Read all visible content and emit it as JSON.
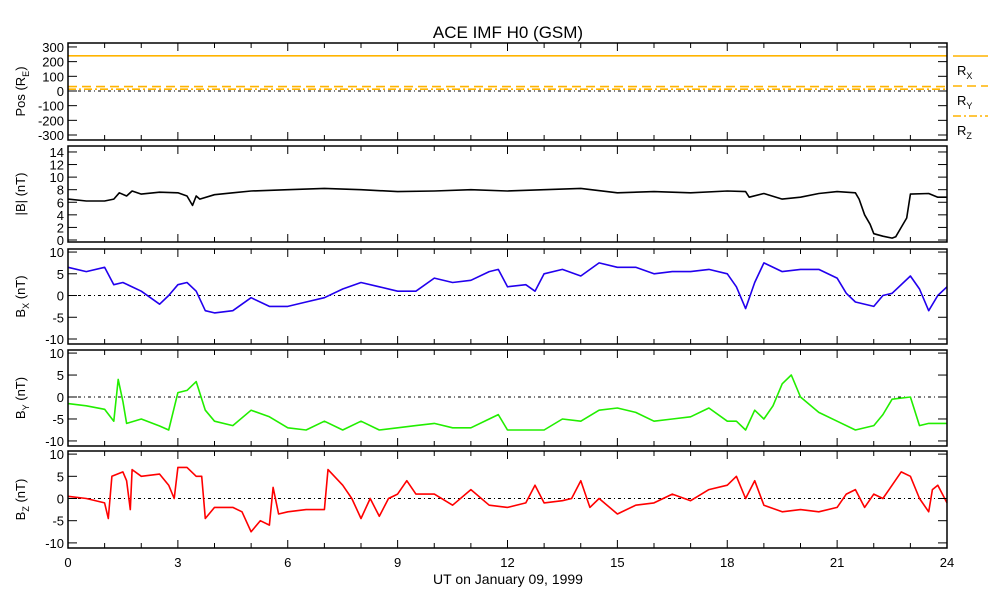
{
  "chart_data": {
    "type": "line",
    "title": "ACE IMF H0 (GSM)",
    "xlabel": "UT on January 09, 1999",
    "xlim": [
      0,
      24
    ],
    "x_tick_labels": [
      "0",
      "3",
      "6",
      "9",
      "12",
      "15",
      "18",
      "21",
      "24"
    ],
    "x_tick_values": [
      0,
      3,
      6,
      9,
      12,
      15,
      18,
      21,
      24
    ],
    "x_minor_step": 1,
    "grid": false,
    "panels": [
      {
        "id": "pos",
        "ylabel": {
          "main": "Pos (R",
          "sub": "E",
          "suffix": ")"
        },
        "ylim": [
          -334,
          327
        ],
        "yticks": [
          -300,
          -200,
          -100,
          0,
          100,
          200,
          300
        ],
        "ytick_labels": [
          "-300",
          "-200",
          "-100",
          "0",
          "100",
          "200",
          "300"
        ],
        "zero_line": true,
        "legend": {
          "placement": "right",
          "entries": [
            {
              "main": "R",
              "sub": "X",
              "style": "solid"
            },
            {
              "main": "R",
              "sub": "Y",
              "style": "dashed"
            },
            {
              "main": "R",
              "sub": "Z",
              "style": "dashdot"
            }
          ]
        },
        "series": [
          {
            "name": "Rx",
            "color": "#ffb400",
            "style": "solid",
            "x": [
              0,
              24
            ],
            "y": [
              240,
              240
            ]
          },
          {
            "name": "Ry",
            "color": "#ffb400",
            "style": "dashed",
            "x": [
              0,
              24
            ],
            "y": [
              30,
              30
            ]
          },
          {
            "name": "Rz",
            "color": "#ffb400",
            "style": "dashdot",
            "x": [
              0,
              24
            ],
            "y": [
              12,
              12
            ]
          }
        ]
      },
      {
        "id": "bmag",
        "ylabel": {
          "main": "|B| (nT)",
          "sub": "",
          "suffix": ""
        },
        "ylim": [
          -0.32,
          14.95
        ],
        "yticks": [
          0,
          2,
          4,
          6,
          8,
          10,
          12,
          14
        ],
        "ytick_labels": [
          "0",
          "2",
          "4",
          "6",
          "8",
          "10",
          "12",
          "14"
        ],
        "zero_line": false,
        "series": [
          {
            "name": "|B|",
            "color": "#000000",
            "style": "solid",
            "x": [
              0,
              0.5,
              1,
              1.25,
              1.4,
              1.6,
              1.75,
              2,
              2.5,
              3,
              3.25,
              3.4,
              3.5,
              3.6,
              4,
              4.5,
              5,
              6,
              7,
              8,
              9,
              10,
              11,
              12,
              13,
              14,
              15,
              16,
              17,
              18,
              18.5,
              18.6,
              19,
              19.5,
              20,
              20.5,
              21,
              21.5,
              21.6,
              21.75,
              21.9,
              22,
              22.25,
              22.5,
              22.6,
              22.75,
              22.9,
              23,
              23.5,
              23.75,
              24
            ],
            "y": [
              6.5,
              6.2,
              6.2,
              6.5,
              7.5,
              7,
              7.8,
              7.3,
              7.6,
              7.5,
              7,
              5.5,
              7,
              6.5,
              7.2,
              7.5,
              7.8,
              8,
              8.2,
              8,
              7.7,
              7.8,
              8,
              7.8,
              8,
              8.2,
              7.5,
              7.7,
              7.5,
              7.8,
              7.7,
              6.8,
              7.4,
              6.5,
              6.8,
              7.4,
              7.7,
              7.5,
              6.5,
              4,
              2.5,
              1,
              0.6,
              0.3,
              0.5,
              2,
              3.5,
              7.3,
              7.4,
              6.8,
              6.8
            ]
          }
        ]
      },
      {
        "id": "bx",
        "ylabel": {
          "main": "B",
          "sub": "X",
          "suffix": " (nT)"
        },
        "ylim": [
          -11.15,
          10.7
        ],
        "yticks": [
          -10,
          -5,
          0,
          5,
          10
        ],
        "ytick_labels": [
          "-10",
          "-5",
          "0",
          "5",
          "10"
        ],
        "zero_line": true,
        "series": [
          {
            "name": "Bx",
            "color": "#2200ee",
            "style": "solid",
            "x": [
              0,
              0.5,
              1,
              1.25,
              1.5,
              2,
              2.5,
              2.75,
              3,
              3.25,
              3.5,
              3.75,
              4,
              4.5,
              5,
              5.5,
              6,
              6.5,
              7,
              7.5,
              8,
              8.5,
              9,
              9.5,
              10,
              10.5,
              11,
              11.5,
              11.75,
              12,
              12.5,
              12.75,
              13,
              13.5,
              14,
              14.5,
              15,
              15.5,
              16,
              16.5,
              17,
              17.5,
              18,
              18.25,
              18.5,
              18.75,
              19,
              19.5,
              20,
              20.5,
              21,
              21.25,
              21.5,
              22,
              22.25,
              22.5,
              23,
              23.25,
              23.5,
              23.75,
              24
            ],
            "y": [
              6.5,
              5.5,
              6.5,
              2.5,
              3,
              1,
              -2,
              0,
              2.5,
              3,
              1,
              -3.5,
              -4,
              -3.5,
              -0.5,
              -2.5,
              -2.5,
              -1.5,
              -0.5,
              1.5,
              3,
              2,
              1,
              1,
              4,
              3,
              3.5,
              5.5,
              6,
              2,
              2.5,
              1,
              5,
              6,
              4.5,
              7.5,
              6.5,
              6.5,
              5,
              5.5,
              5.5,
              6,
              5,
              2,
              -3,
              3,
              7.5,
              5.5,
              6,
              6,
              4,
              0.5,
              -1.5,
              -2.5,
              0,
              0.5,
              4.5,
              1.5,
              -3.5,
              0,
              2
            ]
          }
        ]
      },
      {
        "id": "by",
        "ylabel": {
          "main": "B",
          "sub": "Y",
          "suffix": " (nT)"
        },
        "ylim": [
          -11.15,
          10.7
        ],
        "yticks": [
          -10,
          -5,
          0,
          5,
          10
        ],
        "ytick_labels": [
          "-10",
          "-5",
          "0",
          "5",
          "10"
        ],
        "zero_line": true,
        "series": [
          {
            "name": "By",
            "color": "#22ee00",
            "style": "solid",
            "x": [
              0,
              0.5,
              1,
              1.25,
              1.37,
              1.5,
              1.6,
              2,
              2.5,
              2.75,
              3,
              3.25,
              3.5,
              3.75,
              4,
              4.5,
              5,
              5.5,
              6,
              6.5,
              7,
              7.5,
              8,
              8.5,
              9,
              9.5,
              10,
              10.5,
              11,
              11.5,
              11.75,
              12,
              12.5,
              13,
              13.5,
              14,
              14.5,
              15,
              15.5,
              16,
              16.5,
              17,
              17.5,
              18,
              18.25,
              18.5,
              18.75,
              19,
              19.25,
              19.5,
              19.75,
              20,
              20.5,
              21,
              21.5,
              22,
              22.25,
              22.5,
              23,
              23.25,
              23.5,
              24
            ],
            "y": [
              -1.5,
              -2,
              -2.8,
              -5.5,
              4,
              -1,
              -6,
              -5,
              -6.6,
              -7.5,
              1,
              1.5,
              3.5,
              -3,
              -5.5,
              -6.5,
              -3,
              -4.5,
              -7,
              -7.5,
              -5.5,
              -7.5,
              -5.5,
              -7.5,
              -7,
              -6.5,
              -6,
              -7,
              -7,
              -5,
              -4,
              -7.5,
              -7.5,
              -7.5,
              -5,
              -5.5,
              -3,
              -2.5,
              -3.5,
              -5.5,
              -5,
              -4.5,
              -2.5,
              -5.5,
              -5.5,
              -7.5,
              -3,
              -5,
              -2,
              3,
              5,
              0,
              -3.5,
              -5.5,
              -7.5,
              -6.5,
              -4,
              -0.5,
              0,
              -6.5,
              -6,
              -6
            ]
          }
        ]
      },
      {
        "id": "bz",
        "ylabel": {
          "main": "B",
          "sub": "Z",
          "suffix": " (nT)"
        },
        "ylim": [
          -11.15,
          10.7
        ],
        "yticks": [
          -10,
          -5,
          0,
          5,
          10
        ],
        "ytick_labels": [
          "-10",
          "-5",
          "0",
          "5",
          "10"
        ],
        "zero_line": true,
        "series": [
          {
            "name": "Bz",
            "color": "#ff0000",
            "style": "solid",
            "x": [
              0,
              0.5,
              1,
              1.1,
              1.2,
              1.5,
              1.6,
              1.7,
              1.75,
              2,
              2.5,
              2.75,
              2.9,
              3,
              3.25,
              3.5,
              3.65,
              3.75,
              4,
              4.5,
              4.75,
              5,
              5.25,
              5.5,
              5.6,
              5.75,
              6,
              6.5,
              7,
              7.1,
              7.5,
              7.75,
              8,
              8.25,
              8.5,
              8.75,
              9,
              9.25,
              9.5,
              10,
              10.5,
              11,
              11.5,
              12,
              12.5,
              12.75,
              13,
              13.5,
              13.75,
              14,
              14.25,
              14.5,
              15,
              15.5,
              16,
              16.5,
              17,
              17.5,
              18,
              18.25,
              18.5,
              18.75,
              19,
              19.5,
              20,
              20.5,
              21,
              21.25,
              21.5,
              21.75,
              22,
              22.25,
              22.5,
              22.75,
              23,
              23.25,
              23.5,
              23.6,
              23.75,
              24
            ],
            "y": [
              0.5,
              0,
              -1,
              -4.5,
              5,
              6,
              4,
              -2.5,
              6.5,
              5,
              5.5,
              3,
              0,
              7,
              7,
              5,
              5,
              -4.5,
              -2,
              -2,
              -3,
              -7.5,
              -5,
              -6,
              2.5,
              -3.5,
              -3,
              -2.5,
              -2.5,
              6.5,
              3,
              0,
              -4.5,
              0,
              -4,
              0,
              1,
              4,
              1,
              1,
              -1.5,
              2,
              -1.5,
              -2,
              -1,
              3,
              -1,
              -0.5,
              0,
              4,
              -2,
              0,
              -3.5,
              -1.5,
              -1,
              1,
              -0.5,
              2,
              3,
              5,
              0,
              4,
              -1.5,
              -3,
              -2.5,
              -3,
              -2,
              1,
              2,
              -2,
              1,
              0,
              3,
              6,
              5,
              0,
              -3,
              2,
              3,
              -1
            ]
          }
        ]
      }
    ]
  }
}
